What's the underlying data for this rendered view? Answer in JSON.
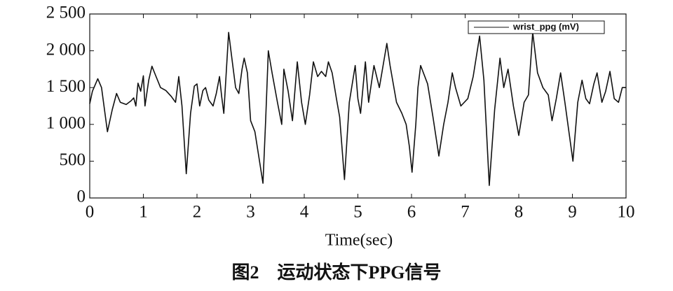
{
  "chart_data": {
    "type": "line",
    "title": "图2　运动状态下PPG信号",
    "xlabel": "Time(sec)",
    "xlim": [
      0,
      10
    ],
    "xticks": [
      0,
      1,
      2,
      3,
      4,
      5,
      6,
      7,
      8,
      9,
      10
    ],
    "ylim": [
      0,
      2500
    ],
    "yticks": [
      0,
      500,
      {
        "value": 1000,
        "label": "1 000"
      },
      {
        "value": 1500,
        "label": "1 500"
      },
      {
        "value": 2000,
        "label": "2 000"
      },
      {
        "value": 2500,
        "label": "2 500"
      }
    ],
    "grid": false,
    "legend": "upper right",
    "x": [
      0,
      0.05,
      0.15,
      0.22,
      0.33,
      0.42,
      0.5,
      0.57,
      0.68,
      0.77,
      0.82,
      0.86,
      0.9,
      0.95,
      1.0,
      1.03,
      1.1,
      1.16,
      1.22,
      1.32,
      1.42,
      1.52,
      1.6,
      1.66,
      1.72,
      1.8,
      1.88,
      1.95,
      2.0,
      2.05,
      2.11,
      2.16,
      2.22,
      2.3,
      2.36,
      2.42,
      2.46,
      2.5,
      2.59,
      2.65,
      2.72,
      2.78,
      2.84,
      2.88,
      2.94,
      3.0,
      3.08,
      3.23,
      3.28,
      3.33,
      3.4,
      3.5,
      3.58,
      3.62,
      3.7,
      3.78,
      3.87,
      3.95,
      4.02,
      4.1,
      4.17,
      4.25,
      4.32,
      4.4,
      4.45,
      4.52,
      4.6,
      4.66,
      4.75,
      4.84,
      4.95,
      5.0,
      5.05,
      5.14,
      5.2,
      5.3,
      5.4,
      5.54,
      5.6,
      5.72,
      5.82,
      5.9,
      5.96,
      6.01,
      6.08,
      6.12,
      6.17,
      6.3,
      6.4,
      6.51,
      6.6,
      6.68,
      6.76,
      6.82,
      6.92,
      7.05,
      7.15,
      7.27,
      7.35,
      7.45,
      7.55,
      7.65,
      7.72,
      7.8,
      7.9,
      8.0,
      8.1,
      8.18,
      8.26,
      8.35,
      8.45,
      8.55,
      8.62,
      8.7,
      8.78,
      8.86,
      9.01,
      9.1,
      9.18,
      9.25,
      9.32,
      9.4,
      9.46,
      9.55,
      9.62,
      9.7,
      9.78,
      9.86,
      9.93,
      10
    ],
    "series": [
      {
        "name": "wrist_ppg (mV)",
        "color": "#111111",
        "values": [
          1280,
          1450,
          1620,
          1500,
          900,
          1200,
          1420,
          1300,
          1270,
          1320,
          1360,
          1250,
          1560,
          1450,
          1660,
          1250,
          1600,
          1790,
          1680,
          1500,
          1460,
          1380,
          1300,
          1650,
          1250,
          330,
          1150,
          1520,
          1550,
          1250,
          1460,
          1500,
          1330,
          1250,
          1420,
          1650,
          1380,
          1150,
          2250,
          1900,
          1500,
          1420,
          1750,
          1900,
          1700,
          1050,
          900,
          200,
          1050,
          2000,
          1700,
          1300,
          1000,
          1750,
          1450,
          1050,
          1850,
          1300,
          1000,
          1400,
          1850,
          1650,
          1720,
          1650,
          1850,
          1700,
          1350,
          1100,
          250,
          1300,
          1800,
          1350,
          1150,
          1850,
          1300,
          1800,
          1500,
          2100,
          1800,
          1300,
          1150,
          1000,
          700,
          350,
          1000,
          1500,
          1800,
          1550,
          1100,
          570,
          1000,
          1300,
          1700,
          1500,
          1250,
          1350,
          1650,
          2200,
          1600,
          170,
          1200,
          1900,
          1500,
          1750,
          1250,
          850,
          1300,
          1400,
          2250,
          1700,
          1500,
          1400,
          1050,
          1350,
          1700,
          1300,
          500,
          1300,
          1600,
          1350,
          1280,
          1550,
          1700,
          1300,
          1450,
          1720,
          1350,
          1300,
          1500,
          1500
        ]
      }
    ]
  }
}
